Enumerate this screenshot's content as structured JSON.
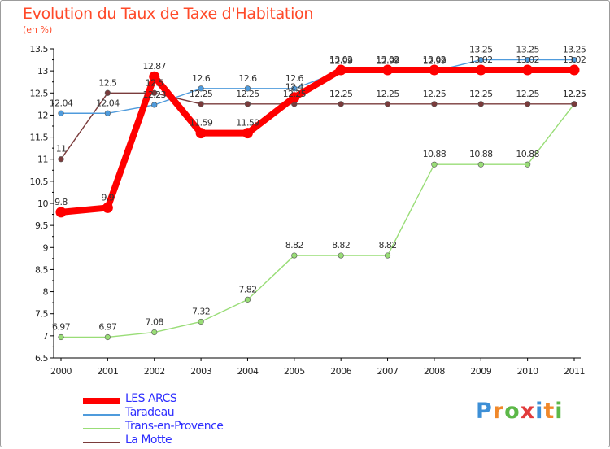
{
  "header": {
    "title": "Evolution du Taux de Taxe d'Habitation",
    "unit": "(en %)"
  },
  "brand": {
    "text": "Proxiti",
    "letters": [
      "P",
      "r",
      "o",
      "x",
      "i",
      "t",
      "i"
    ],
    "colors": [
      "#3d8fd6",
      "#f0882a",
      "#5cb848",
      "#e23b3b",
      "#3d8fd6",
      "#f0882a",
      "#5cb848"
    ]
  },
  "chart_data": {
    "type": "line",
    "x": [
      "2000",
      "2001",
      "2002",
      "2003",
      "2004",
      "2005",
      "2006",
      "2007",
      "2008",
      "2009",
      "2010",
      "2011"
    ],
    "ylim": [
      6.5,
      13.5
    ],
    "yticks": [
      "6.5",
      "7",
      "7.5",
      "8",
      "8.5",
      "9",
      "9.5",
      "10",
      "10.5",
      "11",
      "11.5",
      "12",
      "12.5",
      "13",
      "13.5"
    ],
    "grid": false,
    "legend_position": "bottom-left",
    "series": [
      {
        "name": "LES ARCS",
        "color": "#ff0000",
        "values": [
          9.8,
          9.9,
          12.87,
          11.59,
          11.59,
          12.4,
          13.02,
          13.02,
          13.02,
          13.02,
          13.02,
          13.02
        ],
        "labels": [
          "9.8",
          "9.9",
          "12.87",
          "11.59",
          "11.59",
          "12.4",
          "13.02",
          "13.02",
          "13.02",
          "13.02",
          "13.02",
          "13.02"
        ]
      },
      {
        "name": "Taradeau",
        "color": "#4f9bdc",
        "values": [
          12.04,
          12.04,
          12.23,
          12.6,
          12.6,
          12.6,
          12.99,
          12.99,
          12.99,
          13.25,
          13.25,
          13.25
        ],
        "labels": [
          "12.04",
          "12.04",
          "12.23",
          "12.6",
          "12.6",
          "12.6",
          "12.99",
          "12.99",
          "12.99",
          "13.25",
          "13.25",
          "13.25"
        ]
      },
      {
        "name": "Trans-en-Provence",
        "color": "#99dd77",
        "values": [
          6.97,
          6.97,
          7.08,
          7.32,
          7.82,
          8.82,
          8.82,
          8.82,
          10.88,
          10.88,
          10.88,
          12.25
        ],
        "labels": [
          "6.97",
          "6.97",
          "7.08",
          "7.32",
          "7.82",
          "8.82",
          "8.82",
          "8.82",
          "10.88",
          "10.88",
          "10.88",
          "12.25"
        ]
      },
      {
        "name": "La Motte",
        "color": "#7a3b3b",
        "values": [
          11,
          12.5,
          12.5,
          12.25,
          12.25,
          12.25,
          12.25,
          12.25,
          12.25,
          12.25,
          12.25,
          12.25
        ],
        "labels": [
          "11",
          "12.5",
          "12.5",
          "12.25",
          "12.25",
          "12.25",
          "12.25",
          "12.25",
          "12.25",
          "12.25",
          "12.25",
          "12.25"
        ]
      }
    ]
  }
}
